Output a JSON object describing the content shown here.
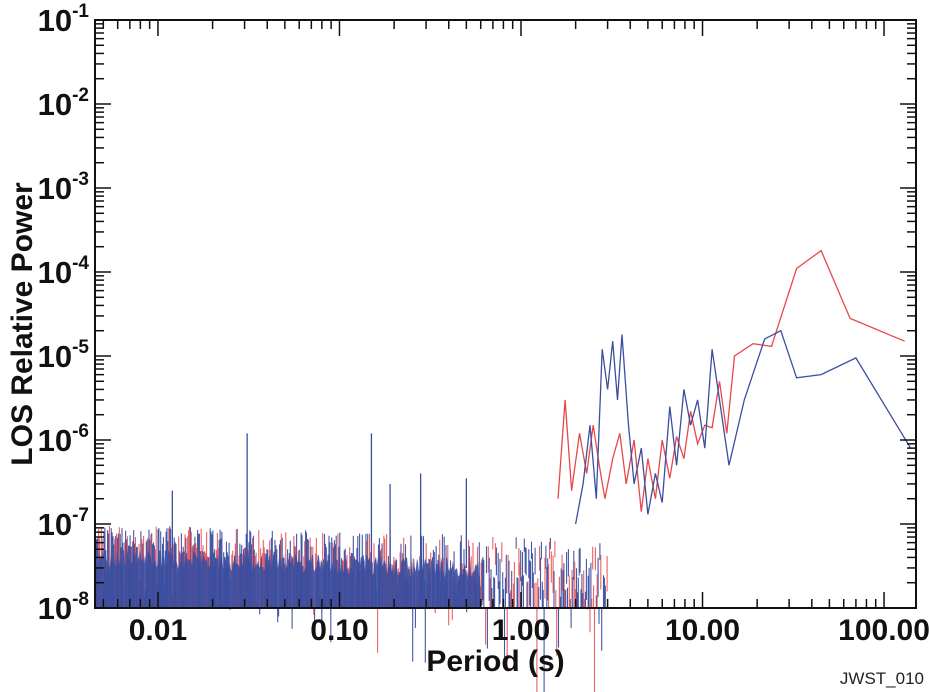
{
  "chart_data": {
    "type": "line",
    "title": "",
    "xlabel": "Period (s)",
    "ylabel": "LOS Relative Power",
    "xscale": "log",
    "yscale": "log",
    "xlim": [
      0.0045,
      150
    ],
    "ylim": [
      1e-08,
      0.1
    ],
    "x_ticks": [
      {
        "value": 0.01,
        "label": "0.01"
      },
      {
        "value": 0.1,
        "label": "0.10"
      },
      {
        "value": 1,
        "label": "1.00"
      },
      {
        "value": 10,
        "label": "10.00"
      },
      {
        "value": 100,
        "label": "100.00"
      }
    ],
    "y_ticks": [
      {
        "value": 1e-08,
        "base": "10",
        "exp": "-8"
      },
      {
        "value": 1e-07,
        "base": "10",
        "exp": "-7"
      },
      {
        "value": 1e-06,
        "base": "10",
        "exp": "-6"
      },
      {
        "value": 1e-05,
        "base": "10",
        "exp": "-5"
      },
      {
        "value": 0.0001,
        "base": "10",
        "exp": "-4"
      },
      {
        "value": 0.001,
        "base": "10",
        "exp": "-3"
      },
      {
        "value": 0.01,
        "base": "10",
        "exp": "-2"
      },
      {
        "value": 0.1,
        "base": "10",
        "exp": "-1"
      }
    ],
    "grid": false,
    "legend": "none",
    "series": [
      {
        "color": "#e8474a",
        "x": [
          1.6,
          1.75,
          1.9,
          2.1,
          2.3,
          2.5,
          2.7,
          2.9,
          3.2,
          3.5,
          3.8,
          4.2,
          4.6,
          5.0,
          5.5,
          6.0,
          6.6,
          7.2,
          7.9,
          8.6,
          9.4,
          10.3,
          11.3,
          12.4,
          13.6,
          15,
          19,
          24,
          33,
          45,
          65,
          130
        ],
        "y": [
          2e-07,
          3e-06,
          2.5e-07,
          1.2e-06,
          4e-07,
          1.5e-06,
          5e-07,
          2e-07,
          6e-07,
          1.2e-06,
          3e-07,
          1e-06,
          1.4e-07,
          6e-07,
          2e-07,
          1e-06,
          3.5e-07,
          1.1e-06,
          6e-07,
          2.2e-06,
          9e-07,
          1.5e-06,
          1.4e-06,
          5e-06,
          1.2e-06,
          1e-05,
          1.4e-05,
          1.3e-05,
          0.00011,
          0.00018,
          2.8e-05,
          1.5e-05
        ]
      },
      {
        "color": "#3b4ea0",
        "x": [
          2.0,
          2.2,
          2.4,
          2.6,
          2.8,
          3.0,
          3.2,
          3.4,
          3.6,
          3.9,
          4.2,
          4.6,
          5.0,
          5.5,
          6.0,
          6.6,
          7.2,
          7.9,
          8.6,
          9.4,
          10.3,
          11.3,
          12.4,
          14,
          17,
          22,
          27,
          33,
          45,
          70,
          140
        ],
        "y": [
          1e-07,
          3e-07,
          1.5e-06,
          2e-07,
          1.2e-05,
          4e-06,
          1.5e-05,
          3e-06,
          1.8e-05,
          1.6e-06,
          3e-07,
          8e-07,
          1.3e-07,
          4e-07,
          1.8e-07,
          2.5e-06,
          5e-07,
          4e-06,
          1.5e-06,
          3e-06,
          8e-07,
          1.2e-05,
          3e-06,
          5e-07,
          3e-06,
          1.6e-05,
          2e-05,
          5.5e-06,
          6e-06,
          9.5e-06,
          8e-07
        ]
      }
    ],
    "noise_band": {
      "x_range": [
        0.0045,
        3.0
      ],
      "floor": 1e-08,
      "envelope_start": 1.2e-07,
      "envelope_end": 8e-08,
      "spikes": [
        {
          "x": 0.031,
          "y": 1.2e-06
        },
        {
          "x": 0.15,
          "y": 1.2e-06
        },
        {
          "x": 0.012,
          "y": 2.5e-07
        },
        {
          "x": 0.19,
          "y": 3e-07
        },
        {
          "x": 0.28,
          "y": 4e-07
        },
        {
          "x": 0.5,
          "y": 3.5e-07
        }
      ],
      "colors": [
        "#3b4ea0",
        "#e8474a"
      ]
    },
    "annotations": [
      {
        "text": "JWST_010"
      }
    ]
  }
}
